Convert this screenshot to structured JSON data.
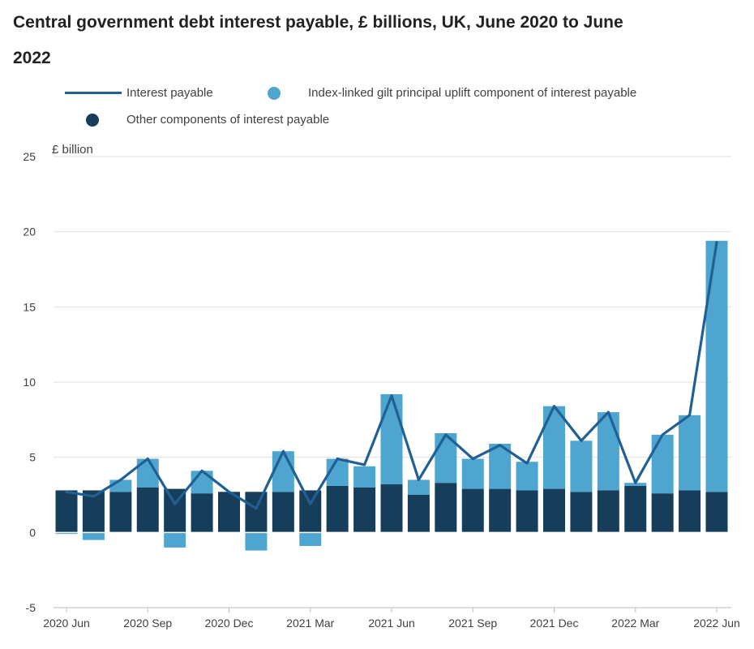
{
  "title": "Central government debt interest payable, £ billions, UK, June 2020 to June 2022",
  "legend": {
    "line": "Interest payable",
    "uplift": "Index-linked gilt principal uplift component of interest payable",
    "other": "Other components of interest payable"
  },
  "colors": {
    "line": "#206095",
    "uplift": "#4ea5d0",
    "other": "#163d5a",
    "grid": "#e0e0e0",
    "axis": "#bdbdbd"
  },
  "chart_data": {
    "type": "bar",
    "stacked": true,
    "ylabel": "£ billion",
    "ylim": [
      -5,
      25
    ],
    "yticks": [
      -5,
      0,
      5,
      10,
      15,
      20,
      25
    ],
    "grid": true,
    "legend_position": "top",
    "categories": [
      "2020 Jun",
      "2020 Jul",
      "2020 Aug",
      "2020 Sep",
      "2020 Oct",
      "2020 Nov",
      "2020 Dec",
      "2021 Jan",
      "2021 Feb",
      "2021 Mar",
      "2021 Apr",
      "2021 May",
      "2021 Jun",
      "2021 Jul",
      "2021 Aug",
      "2021 Sep",
      "2021 Oct",
      "2021 Nov",
      "2021 Dec",
      "2022 Jan",
      "2022 Feb",
      "2022 Mar",
      "2022 Apr",
      "2022 May",
      "2022 Jun"
    ],
    "xtick_labels": [
      "2020 Jun",
      "2020 Sep",
      "2020 Dec",
      "2021 Mar",
      "2021 Jun",
      "2021 Sep",
      "2021 Dec",
      "2022 Mar",
      "2022 Jun"
    ],
    "xtick_indices": [
      0,
      3,
      6,
      9,
      12,
      15,
      18,
      21,
      24
    ],
    "series": [
      {
        "name": "Other components of interest payable",
        "kind": "bar",
        "values": [
          2.8,
          2.8,
          2.7,
          3.0,
          2.9,
          2.6,
          2.7,
          2.7,
          2.7,
          2.8,
          3.1,
          3.0,
          3.2,
          2.5,
          3.3,
          2.9,
          2.9,
          2.8,
          2.9,
          2.7,
          2.8,
          3.1,
          2.6,
          2.8,
          2.7
        ]
      },
      {
        "name": "Index-linked gilt principal uplift component of interest payable",
        "kind": "bar",
        "values": [
          -0.1,
          -0.5,
          0.8,
          1.9,
          -1.0,
          1.5,
          0.0,
          -1.2,
          2.7,
          -0.9,
          1.8,
          1.4,
          6.0,
          1.0,
          3.3,
          2.0,
          3.0,
          1.9,
          5.5,
          3.4,
          5.2,
          0.2,
          3.9,
          5.0,
          16.7
        ]
      },
      {
        "name": "Interest payable",
        "kind": "line",
        "values": [
          2.7,
          2.4,
          3.5,
          4.9,
          1.9,
          4.1,
          2.7,
          1.6,
          5.4,
          1.9,
          4.9,
          4.5,
          9.1,
          3.5,
          6.5,
          4.9,
          5.8,
          4.6,
          8.4,
          6.1,
          8.0,
          3.3,
          6.5,
          7.8,
          19.3
        ]
      }
    ]
  }
}
